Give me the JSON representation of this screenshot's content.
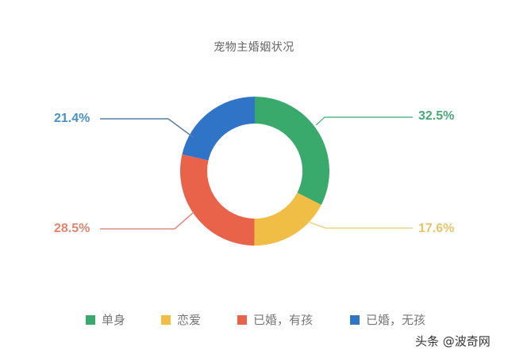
{
  "chart_data": {
    "type": "pie",
    "subtype": "donut",
    "title": "宠物主婚姻状况",
    "categories": [
      "单身",
      "恋爱",
      "已婚，有孩",
      "已婚，无孩"
    ],
    "values": [
      32.5,
      17.6,
      28.5,
      21.4
    ],
    "labels": [
      "32.5%",
      "17.6%",
      "28.5%",
      "21.4%"
    ],
    "colors": [
      "#3aaa6c",
      "#f0bd45",
      "#e8634a",
      "#2f74c6"
    ],
    "start_angle": "12 o'clock",
    "direction": "clockwise",
    "legend_position": "bottom"
  },
  "title": "宠物主婚姻状况",
  "labels": {
    "single": "32.5%",
    "dating": "17.6%",
    "married_kids": "28.5%",
    "married_nokids": "21.4%"
  },
  "legend": [
    {
      "label": "单身",
      "color": "#3aaa6c"
    },
    {
      "label": "恋爱",
      "color": "#f0bd45"
    },
    {
      "label": "已婚，有孩",
      "color": "#e8634a"
    },
    {
      "label": "已婚，无孩",
      "color": "#2f74c6"
    }
  ],
  "watermark": "头条 @波奇网"
}
